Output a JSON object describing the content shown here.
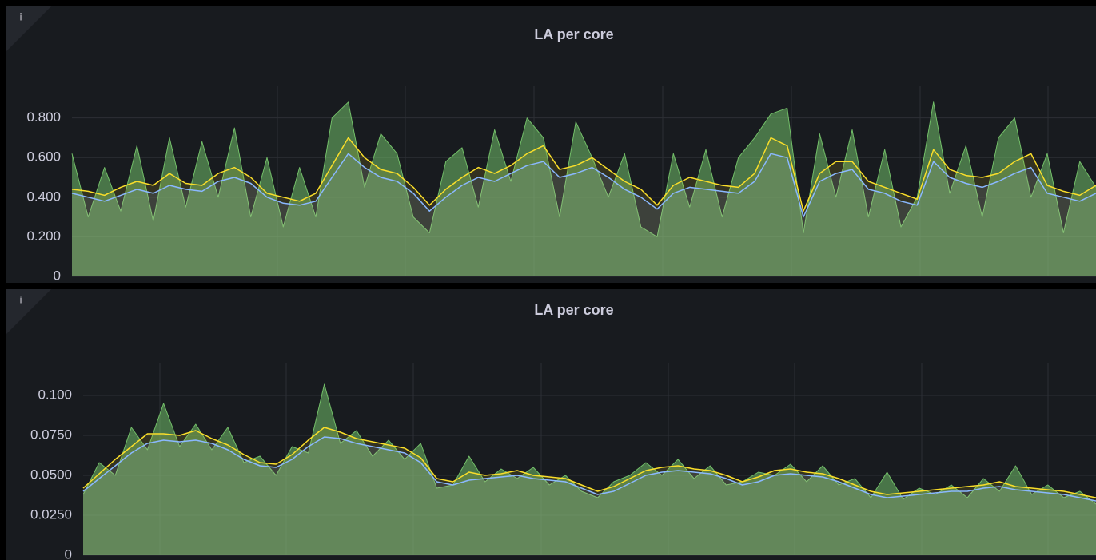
{
  "chart_data": [
    {
      "type": "line",
      "title": "LA per core",
      "info": "i",
      "ylim": [
        0,
        0.96
      ],
      "yticks": [
        0,
        {
          "value": 0.2,
          "label": "0.200"
        },
        {
          "value": 0.4,
          "label": "0.400"
        },
        {
          "value": 0.6,
          "label": "0.600"
        },
        {
          "value": 0.8,
          "label": "0.800"
        }
      ],
      "grid": true,
      "series": [
        {
          "color": "#73bf69",
          "values": [
            0.62,
            0.3,
            0.55,
            0.33,
            0.66,
            0.28,
            0.7,
            0.35,
            0.68,
            0.4,
            0.75,
            0.3,
            0.6,
            0.25,
            0.55,
            0.3,
            0.8,
            0.88,
            0.45,
            0.72,
            0.62,
            0.3,
            0.22,
            0.58,
            0.65,
            0.35,
            0.74,
            0.48,
            0.8,
            0.7,
            0.3,
            0.78,
            0.6,
            0.4,
            0.62,
            0.25,
            0.2,
            0.62,
            0.35,
            0.64,
            0.3,
            0.6,
            0.7,
            0.82,
            0.85,
            0.22,
            0.72,
            0.4,
            0.74,
            0.3,
            0.64,
            0.25,
            0.4,
            0.88,
            0.42,
            0.66,
            0.3,
            0.7,
            0.8,
            0.4,
            0.62,
            0.22,
            0.58,
            0.45
          ]
        },
        {
          "color": "#fade2a",
          "values": [
            0.44,
            0.43,
            0.41,
            0.45,
            0.48,
            0.46,
            0.52,
            0.47,
            0.46,
            0.52,
            0.55,
            0.5,
            0.42,
            0.4,
            0.38,
            0.42,
            0.56,
            0.7,
            0.6,
            0.54,
            0.52,
            0.45,
            0.36,
            0.44,
            0.5,
            0.55,
            0.52,
            0.56,
            0.62,
            0.66,
            0.54,
            0.56,
            0.6,
            0.54,
            0.48,
            0.44,
            0.36,
            0.46,
            0.5,
            0.48,
            0.46,
            0.45,
            0.52,
            0.7,
            0.66,
            0.33,
            0.52,
            0.58,
            0.58,
            0.48,
            0.45,
            0.42,
            0.39,
            0.64,
            0.54,
            0.51,
            0.5,
            0.52,
            0.58,
            0.62,
            0.46,
            0.43,
            0.41,
            0.46
          ]
        },
        {
          "color": "#8ab8ff",
          "values": [
            0.42,
            0.4,
            0.38,
            0.41,
            0.44,
            0.42,
            0.46,
            0.44,
            0.43,
            0.48,
            0.5,
            0.47,
            0.4,
            0.37,
            0.36,
            0.38,
            0.5,
            0.62,
            0.55,
            0.5,
            0.48,
            0.42,
            0.33,
            0.4,
            0.46,
            0.5,
            0.48,
            0.52,
            0.56,
            0.58,
            0.5,
            0.52,
            0.55,
            0.5,
            0.44,
            0.4,
            0.34,
            0.42,
            0.45,
            0.44,
            0.43,
            0.42,
            0.48,
            0.62,
            0.6,
            0.3,
            0.48,
            0.52,
            0.54,
            0.44,
            0.42,
            0.38,
            0.36,
            0.58,
            0.5,
            0.47,
            0.45,
            0.48,
            0.52,
            0.55,
            0.42,
            0.4,
            0.38,
            0.42
          ]
        }
      ]
    },
    {
      "type": "line",
      "title": "LA per core",
      "info": "i",
      "ylim": [
        0,
        0.12
      ],
      "yticks": [
        0,
        {
          "value": 0.025,
          "label": "0.0250"
        },
        {
          "value": 0.05,
          "label": "0.0500"
        },
        {
          "value": 0.075,
          "label": "0.0750"
        },
        {
          "value": 0.1,
          "label": "0.100"
        }
      ],
      "grid": true,
      "series": [
        {
          "color": "#73bf69",
          "values": [
            0.038,
            0.058,
            0.05,
            0.08,
            0.066,
            0.095,
            0.068,
            0.082,
            0.066,
            0.08,
            0.058,
            0.062,
            0.05,
            0.068,
            0.064,
            0.107,
            0.07,
            0.078,
            0.062,
            0.072,
            0.06,
            0.07,
            0.042,
            0.044,
            0.062,
            0.046,
            0.054,
            0.048,
            0.055,
            0.044,
            0.05,
            0.04,
            0.036,
            0.046,
            0.05,
            0.058,
            0.05,
            0.06,
            0.048,
            0.056,
            0.044,
            0.046,
            0.052,
            0.05,
            0.057,
            0.046,
            0.056,
            0.044,
            0.048,
            0.036,
            0.052,
            0.035,
            0.042,
            0.038,
            0.044,
            0.036,
            0.048,
            0.04,
            0.056,
            0.038,
            0.044,
            0.036,
            0.04,
            0.032
          ]
        },
        {
          "color": "#fade2a",
          "values": [
            0.042,
            0.051,
            0.06,
            0.068,
            0.076,
            0.076,
            0.075,
            0.078,
            0.073,
            0.069,
            0.063,
            0.058,
            0.057,
            0.063,
            0.072,
            0.08,
            0.077,
            0.073,
            0.071,
            0.069,
            0.067,
            0.061,
            0.048,
            0.046,
            0.052,
            0.05,
            0.051,
            0.053,
            0.05,
            0.049,
            0.048,
            0.044,
            0.04,
            0.043,
            0.048,
            0.053,
            0.055,
            0.056,
            0.054,
            0.053,
            0.05,
            0.046,
            0.049,
            0.053,
            0.054,
            0.052,
            0.051,
            0.048,
            0.044,
            0.04,
            0.038,
            0.039,
            0.04,
            0.041,
            0.042,
            0.043,
            0.044,
            0.046,
            0.043,
            0.042,
            0.041,
            0.04,
            0.038,
            0.036
          ]
        },
        {
          "color": "#8ab8ff",
          "values": [
            0.04,
            0.048,
            0.056,
            0.064,
            0.07,
            0.072,
            0.071,
            0.072,
            0.07,
            0.066,
            0.06,
            0.056,
            0.055,
            0.06,
            0.068,
            0.074,
            0.073,
            0.07,
            0.068,
            0.066,
            0.064,
            0.058,
            0.046,
            0.044,
            0.047,
            0.048,
            0.049,
            0.05,
            0.048,
            0.047,
            0.046,
            0.042,
            0.038,
            0.04,
            0.045,
            0.05,
            0.052,
            0.053,
            0.052,
            0.051,
            0.048,
            0.044,
            0.046,
            0.05,
            0.051,
            0.05,
            0.049,
            0.046,
            0.042,
            0.038,
            0.036,
            0.037,
            0.038,
            0.039,
            0.04,
            0.04,
            0.042,
            0.043,
            0.041,
            0.04,
            0.039,
            0.038,
            0.036,
            0.034
          ]
        }
      ]
    }
  ]
}
